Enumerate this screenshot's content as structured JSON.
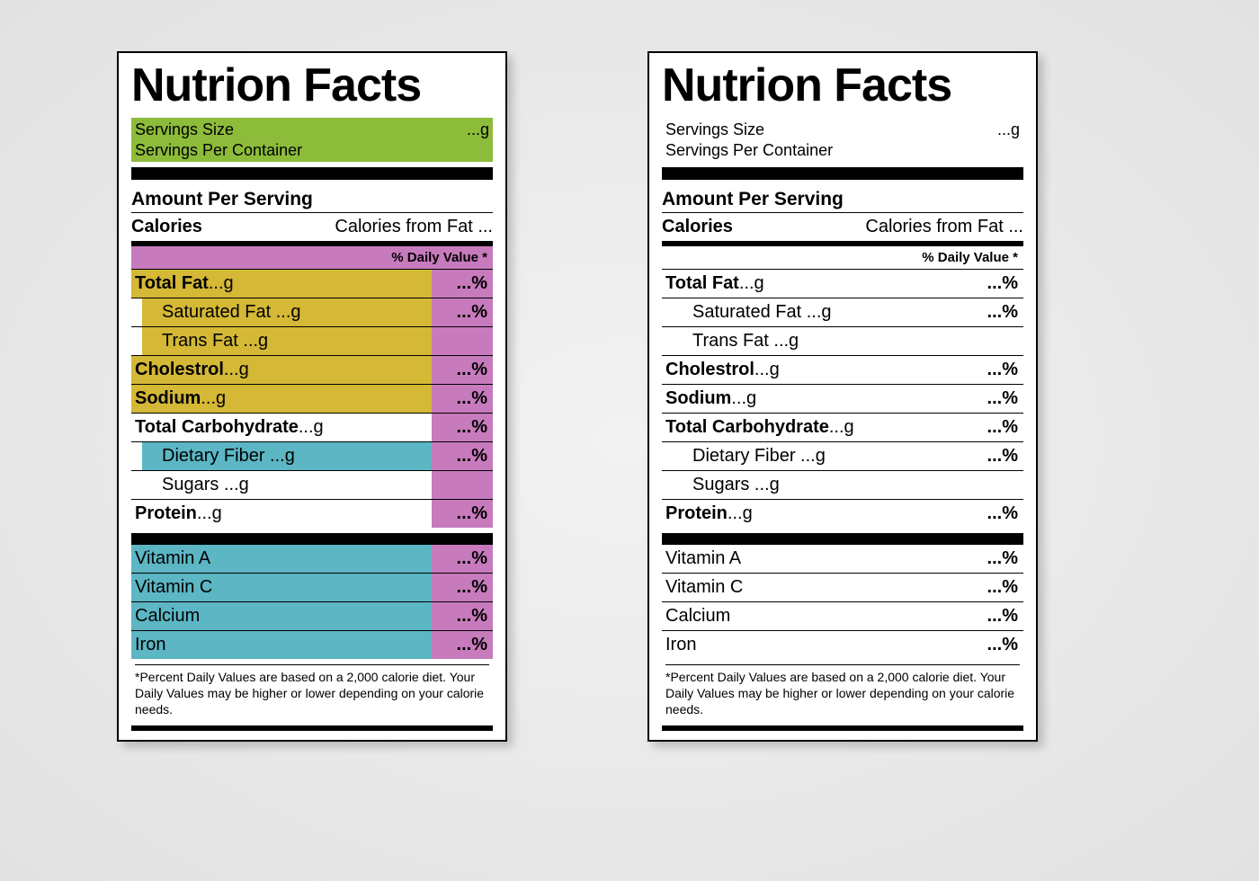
{
  "colors": {
    "green": "#8dbb3a",
    "yellow": "#d4b836",
    "blue": "#5cb6c4",
    "pink": "#c77bbd",
    "black": "#000000",
    "white": "#ffffff"
  },
  "common": {
    "title": "Nutrion Facts",
    "servings_size_label": "Servings Size",
    "servings_size_value": "...g",
    "servings_per_label": "Servings Per Container",
    "amount_per_serving": "Amount Per Serving",
    "calories_label": "Calories",
    "calories_from_fat": "Calories from Fat ...",
    "daily_value_header": "% Daily Value *",
    "footnote": "*Percent Daily Values are based on a 2,000 calorie diet. Your Daily Values may be higher or lower depending on your calorie needs."
  },
  "rows": [
    {
      "label_bold": "Total Fat",
      "suffix": " ...g",
      "indent": false,
      "dv": "...%",
      "left_name_color": "yellow",
      "left_dv_color": "pink"
    },
    {
      "label_bold": "",
      "label": "Saturated Fat ...g",
      "indent": true,
      "dv": "...%",
      "left_name_color": "yellow",
      "left_dv_color": "pink"
    },
    {
      "label_bold": "",
      "label": "Trans Fat ...g",
      "indent": true,
      "dv": "",
      "left_name_color": "yellow",
      "left_dv_color": "pink"
    },
    {
      "label_bold": "Cholestrol",
      "suffix": " ...g",
      "indent": false,
      "dv": "...%",
      "left_name_color": "yellow",
      "left_dv_color": "pink"
    },
    {
      "label_bold": "Sodium",
      "suffix": " ...g",
      "indent": false,
      "dv": "...%",
      "left_name_color": "yellow",
      "left_dv_color": "pink"
    },
    {
      "label_bold": "Total Carbohydrate",
      "suffix": " ...g",
      "indent": false,
      "dv": "...%",
      "left_name_color": "",
      "left_dv_color": "pink"
    },
    {
      "label_bold": "",
      "label": "Dietary Fiber ...g",
      "indent": true,
      "dv": "...%",
      "left_name_color": "blue",
      "left_dv_color": "pink"
    },
    {
      "label_bold": "",
      "label": "Sugars ...g",
      "indent": true,
      "dv": "",
      "left_name_color": "",
      "left_dv_color": "pink"
    },
    {
      "label_bold": "Protein",
      "suffix": " ...g",
      "indent": false,
      "dv": "...%",
      "left_name_color": "",
      "left_dv_color": "pink"
    }
  ],
  "vitamins": [
    {
      "label": "Vitamin A",
      "dv": "...%",
      "left_name_color": "blue",
      "left_dv_color": "pink"
    },
    {
      "label": "Vitamin C",
      "dv": "...%",
      "left_name_color": "blue",
      "left_dv_color": "pink"
    },
    {
      "label": "Calcium",
      "dv": "...%",
      "left_name_color": "blue",
      "left_dv_color": "pink"
    },
    {
      "label": "Iron",
      "dv": "...%",
      "left_name_color": "blue",
      "left_dv_color": "pink"
    }
  ],
  "left_dv_header_color": "pink"
}
